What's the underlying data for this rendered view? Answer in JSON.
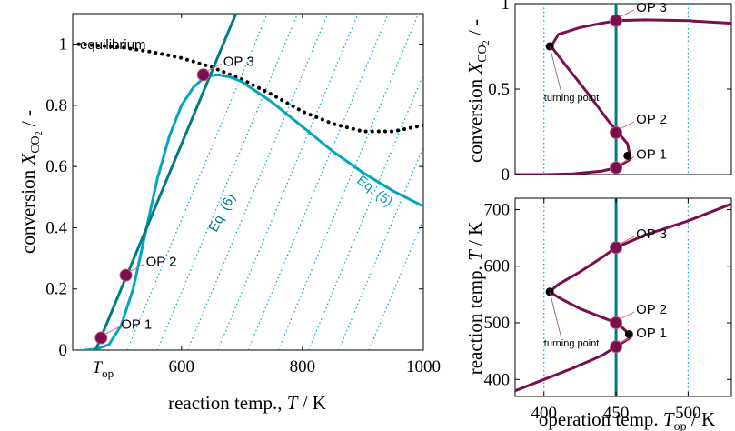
{
  "colors": {
    "teal": "#007b80",
    "cyan": "#00a6bf",
    "purple": "#7a0f4f",
    "black": "#000000",
    "label_line": "#e0607e"
  },
  "chart_data": [
    {
      "id": "main",
      "type": "line",
      "xlabel": "reaction temp., T / K",
      "ylabel": "conversion X_CO2 / -",
      "xlim": [
        420,
        1000
      ],
      "ylim": [
        0,
        1.1
      ],
      "xticks": [
        600,
        800,
        1000
      ],
      "yticks": [
        0,
        0.2,
        0.4,
        0.6,
        0.8,
        1
      ],
      "xtick_label_extra": "T_op",
      "xtick_extra_value": 458,
      "series": [
        {
          "name": "equilibrium",
          "style": "dotted",
          "color": "#000000",
          "x": [
            430,
            500,
            550,
            600,
            650,
            700,
            750,
            800,
            850,
            900,
            950,
            1000
          ],
          "y": [
            1.0,
            0.99,
            0.975,
            0.955,
            0.925,
            0.885,
            0.835,
            0.78,
            0.74,
            0.715,
            0.715,
            0.735
          ]
        },
        {
          "name": "Eq. (5)",
          "style": "solid",
          "color": "#00a6bf",
          "x": [
            440,
            460,
            480,
            500,
            520,
            540,
            560,
            580,
            600,
            620,
            640,
            660,
            680,
            700,
            750,
            800,
            850,
            900,
            950,
            1000
          ],
          "y": [
            0.0,
            0.004,
            0.018,
            0.08,
            0.2,
            0.38,
            0.56,
            0.7,
            0.8,
            0.86,
            0.895,
            0.9,
            0.893,
            0.877,
            0.81,
            0.73,
            0.65,
            0.58,
            0.52,
            0.47
          ]
        },
        {
          "name": "Eq. (6)",
          "style": "solid",
          "color": "#007b80",
          "x": [
            458,
            690
          ],
          "y": [
            0.0,
            1.1
          ]
        }
      ],
      "energy_lines": {
        "style": "dotted",
        "color": "#00a6bf",
        "offsets_T": [
          458,
          510,
          560,
          610,
          660,
          710,
          760,
          810,
          860,
          910
        ]
      },
      "points": [
        {
          "label": "OP 1",
          "x": 467,
          "y": 0.04
        },
        {
          "label": "OP 2",
          "x": 508,
          "y": 0.245
        },
        {
          "label": "OP 3",
          "x": 636,
          "y": 0.9
        }
      ],
      "annotations": {
        "equilibrium": "equilibrium",
        "eq5": "Eq. (5)",
        "eq6": "Eq. (6)"
      }
    },
    {
      "id": "top-right",
      "type": "line",
      "xlabel": "",
      "ylabel": "conversion X_CO2 / -",
      "xlim": [
        380,
        530
      ],
      "ylim": [
        0,
        1
      ],
      "yticks": [
        0,
        0.5,
        1
      ],
      "ytick_labels": [
        "0",
        "0.5",
        "1"
      ],
      "vlines_dotted": [
        400,
        500
      ],
      "vline_solid": 450,
      "series": [
        {
          "name": "conversion",
          "color": "#7a0f4f",
          "x": [
            380,
            400,
            420,
            440,
            450,
            460,
            458,
            452,
            445,
            430,
            415,
            405,
            410,
            425,
            440,
            450,
            470,
            500,
            530
          ],
          "y": [
            0.0,
            0.0,
            0.004,
            0.02,
            0.04,
            0.09,
            0.18,
            0.24,
            0.31,
            0.48,
            0.64,
            0.75,
            0.82,
            0.86,
            0.885,
            0.9,
            0.905,
            0.9,
            0.885
          ]
        }
      ],
      "points": [
        {
          "label": "OP 1",
          "x": 450,
          "y": 0.04
        },
        {
          "label": "OP 2",
          "x": 450,
          "y": 0.245
        },
        {
          "label": "OP 3",
          "x": 450,
          "y": 0.9
        },
        {
          "label": "turning point",
          "x": 404,
          "y": 0.75,
          "kind": "turning"
        },
        {
          "label": "",
          "x": 458,
          "y": 0.11,
          "kind": "turning"
        }
      ]
    },
    {
      "id": "bottom-right",
      "type": "line",
      "xlabel": "operation temp. T_op / K",
      "ylabel": "reaction temp. T / K",
      "xlim": [
        380,
        530
      ],
      "ylim": [
        370,
        720
      ],
      "xticks": [
        400,
        450,
        500
      ],
      "yticks": [
        400,
        500,
        600,
        700
      ],
      "vlines_dotted": [
        400,
        500
      ],
      "vline_solid": 450,
      "series": [
        {
          "name": "reaction temp",
          "color": "#7a0f4f",
          "x": [
            380,
            400,
            420,
            440,
            450,
            460,
            459,
            455,
            450,
            440,
            425,
            410,
            404,
            410,
            425,
            440,
            450,
            470,
            500,
            530
          ],
          "y": [
            380,
            400,
            420,
            442,
            458,
            474,
            480,
            490,
            500,
            510,
            525,
            545,
            555,
            568,
            590,
            615,
            633,
            655,
            680,
            710
          ]
        }
      ],
      "points": [
        {
          "label": "OP 1",
          "x": 450,
          "y": 458
        },
        {
          "label": "OP 2",
          "x": 450,
          "y": 500
        },
        {
          "label": "OP 3",
          "x": 450,
          "y": 633
        },
        {
          "label": "turning point",
          "x": 404,
          "y": 555,
          "kind": "turning"
        },
        {
          "label": "",
          "x": 459,
          "y": 480,
          "kind": "turning"
        }
      ]
    }
  ]
}
